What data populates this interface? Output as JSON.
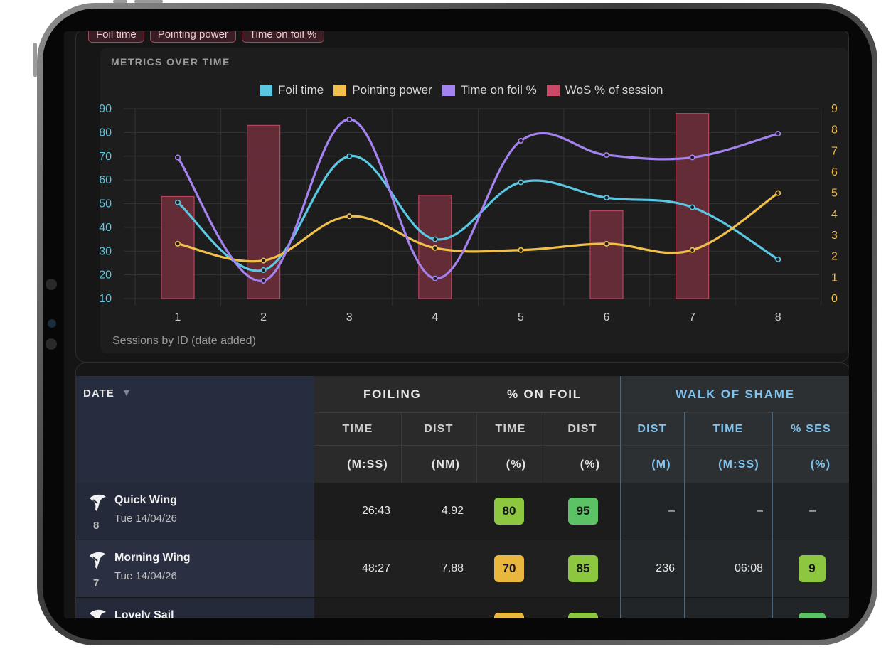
{
  "filter_chips": [
    "Foil time",
    "Pointing power",
    "Time on foil %"
  ],
  "chart_panel": {
    "title": "METRICS OVER TIME",
    "x_axis_title": "Sessions by ID (date added)"
  },
  "chart_data": {
    "type": "line",
    "x": [
      1,
      2,
      3,
      4,
      5,
      6,
      7,
      8
    ],
    "y_left_ticks": [
      10,
      20,
      30,
      40,
      50,
      60,
      70,
      80,
      90
    ],
    "y_right_ticks": [
      0,
      1,
      2,
      3,
      4,
      5,
      6,
      7,
      8,
      9
    ],
    "ylim_left": [
      10,
      90
    ],
    "ylim_right": [
      0,
      9
    ],
    "grid": true,
    "legend_position": "top-center",
    "series": [
      {
        "name": "Foil time",
        "type": "line",
        "axis": "left",
        "color": "#5bc8e3",
        "values": [
          50.5,
          22,
          70,
          35,
          59,
          52.5,
          48.5,
          26.5
        ]
      },
      {
        "name": "Pointing power",
        "type": "line",
        "axis": "right",
        "color": "#f0c04a",
        "values": [
          2.6,
          1.8,
          3.9,
          2.4,
          2.3,
          2.6,
          2.3,
          5.0
        ]
      },
      {
        "name": "Time on foil %",
        "type": "line",
        "axis": "left",
        "color": "#a482ef",
        "values": [
          69.5,
          17.5,
          85.5,
          18.5,
          76.5,
          70.5,
          69.5,
          79.5
        ]
      },
      {
        "name": "WoS % of session",
        "type": "bar",
        "axis": "left",
        "color": "#c94a66",
        "values": [
          53,
          83,
          null,
          53.5,
          null,
          47,
          88,
          null
        ]
      }
    ]
  },
  "table": {
    "date_header": "DATE",
    "sort_icon": "▼",
    "group_foiling": "FOILING",
    "group_pct": "% ON FOIL",
    "group_wos": "WALK OF SHAME",
    "sub_headers": [
      "TIME",
      "DIST",
      "TIME",
      "DIST",
      "DIST",
      "TIME",
      "% SES"
    ],
    "units": [
      "(M:SS)",
      "(NM)",
      "(%)",
      "(%)",
      "(M)",
      "(M:SS)",
      "(%)"
    ],
    "rows": [
      {
        "id": "8",
        "name": "Quick Wing",
        "date": "Tue 14/04/26",
        "foil_time": "26:43",
        "foil_dist": "4.92",
        "pct_time": "80",
        "pct_time_color": "#8dc63f",
        "pct_dist": "95",
        "pct_dist_color": "#5cc266",
        "wos_dist": "–",
        "wos_time": "–",
        "wos_pct": "–",
        "wos_pct_color": ""
      },
      {
        "id": "7",
        "name": "Morning Wing",
        "date": "Tue 14/04/26",
        "foil_time": "48:27",
        "foil_dist": "7.88",
        "pct_time": "70",
        "pct_time_color": "#e9b63e",
        "pct_dist": "85",
        "pct_dist_color": "#8dc63f",
        "wos_dist": "236",
        "wos_time": "06:08",
        "wos_pct": "9",
        "wos_pct_color": "#8dc63f"
      },
      {
        "id": "",
        "name": "Lovely Sail",
        "date": "",
        "foil_time": "",
        "foil_dist": "",
        "pct_time": "",
        "pct_time_color": "#e9b63e",
        "pct_dist": "",
        "pct_dist_color": "#8dc63f",
        "wos_dist": "",
        "wos_time": "",
        "wos_pct": "",
        "wos_pct_color": "#5cc266"
      }
    ]
  },
  "icons": {
    "session_type": "wing-icon"
  }
}
